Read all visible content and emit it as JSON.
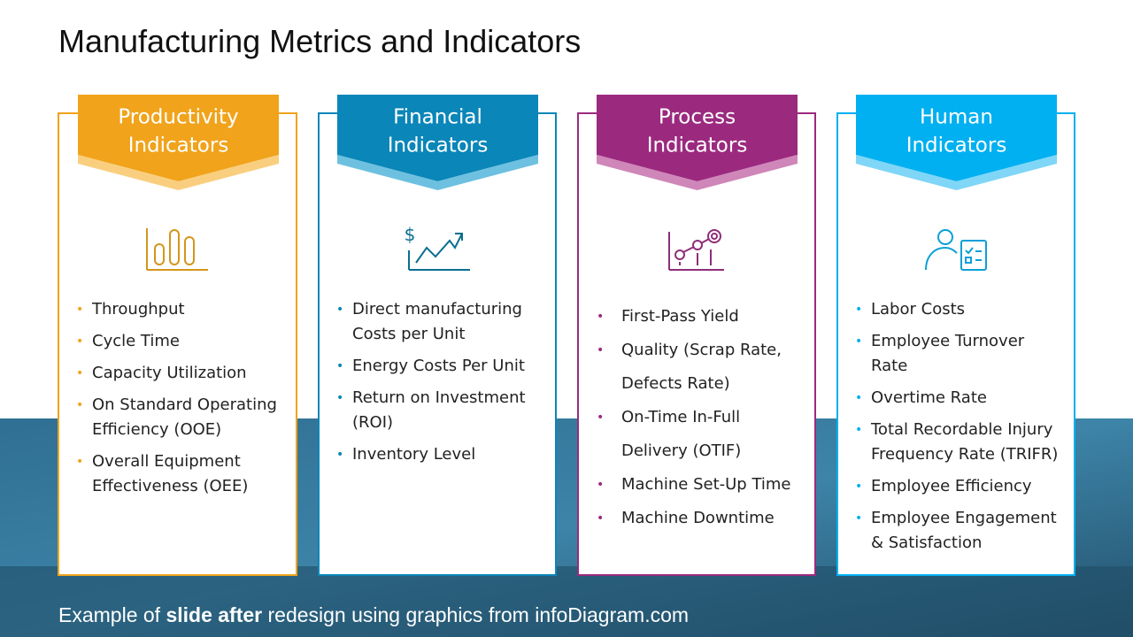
{
  "title": "Manufacturing Metrics and Indicators",
  "columns": [
    {
      "header": [
        "Productivity",
        "Indicators"
      ],
      "items": [
        "Throughput",
        "Cycle Time",
        "Capacity Utilization",
        "On Standard Operating Efficiency (OOE)",
        "Overall Equipment Effectiveness (OEE)"
      ]
    },
    {
      "header": [
        "Financial",
        "Indicators"
      ],
      "items": [
        "Direct manufacturing Costs per Unit",
        "Energy Costs Per Unit",
        "Return on Investment (ROI)",
        "Inventory Level"
      ]
    },
    {
      "header": [
        "Process",
        "Indicators"
      ],
      "items": [
        "First-Pass Yield",
        "Quality (Scrap Rate, Defects Rate)",
        "On-Time In-Full Delivery (OTIF)",
        "Machine Set-Up Time",
        "Machine Downtime"
      ]
    },
    {
      "header": [
        "Human",
        "Indicators"
      ],
      "items": [
        "Labor Costs",
        "Employee Turnover Rate",
        "Overtime Rate",
        "Total Recordable Injury Frequency Rate (TRIFR)",
        "Employee Efficiency",
        "Employee Engagement & Satisfaction"
      ]
    }
  ],
  "footer": [
    "Example of ",
    "slide after",
    " redesign using graphics from infoDiagram.com"
  ]
}
